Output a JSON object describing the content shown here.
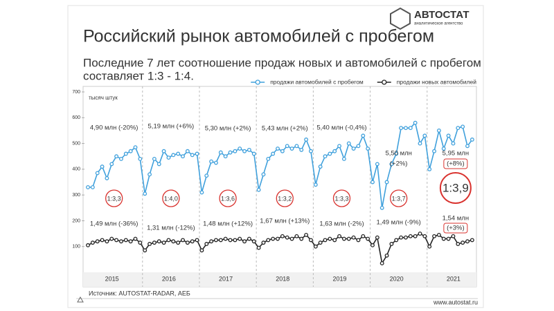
{
  "brand": {
    "name": "АВТОСТАТ",
    "tagline": "аналитическое агентство"
  },
  "footer": {
    "source": "Источник: AUTOSTAT-RADAR, АЕБ",
    "site": "www.autostat.ru"
  },
  "chart_data": {
    "type": "line",
    "title": "Российский рынок автомобилей с пробегом",
    "subtitle": [
      "Последние 7 лет соотношение продаж новых и автомобилей с пробегом",
      "составляет 1:3 - 1:4."
    ],
    "y_label": "тысяч штук",
    "ylim": [
      0,
      700
    ],
    "yticks": [
      100,
      200,
      300,
      400,
      500,
      600,
      700
    ],
    "grid": false,
    "legend": "top-right",
    "categories": [
      null,
      null,
      null,
      null,
      null,
      null,
      "2015",
      null,
      null,
      null,
      null,
      null,
      null,
      null,
      null,
      null,
      null,
      null,
      "2016",
      null,
      null,
      null,
      null,
      null,
      null,
      null,
      null,
      null,
      null,
      null,
      "2017",
      null,
      null,
      null,
      null,
      null,
      null,
      null,
      null,
      null,
      null,
      null,
      "2018",
      null,
      null,
      null,
      null,
      null,
      null,
      null,
      null,
      null,
      null,
      null,
      "2019",
      null,
      null,
      null,
      null,
      null,
      null,
      null,
      null,
      null,
      null,
      null,
      "2020",
      null,
      null,
      null,
      null,
      null,
      null,
      null,
      null,
      null,
      null,
      null,
      "2021",
      null,
      null,
      null
    ],
    "series": [
      {
        "name": "продажи автомобилей с пробегом",
        "color": "#3fa0dc",
        "values": [
          330,
          330,
          385,
          410,
          365,
          420,
          450,
          440,
          460,
          470,
          485,
          440,
          305,
          380,
          440,
          420,
          470,
          445,
          455,
          460,
          450,
          470,
          455,
          460,
          310,
          375,
          430,
          425,
          465,
          450,
          465,
          470,
          480,
          470,
          475,
          460,
          320,
          380,
          440,
          460,
          480,
          470,
          490,
          480,
          490,
          475,
          515,
          470,
          340,
          410,
          450,
          460,
          470,
          490,
          440,
          500,
          480,
          490,
          530,
          480,
          350,
          420,
          250,
          350,
          420,
          460,
          560,
          560,
          560,
          580,
          500,
          530,
          400,
          470,
          550,
          480,
          530,
          500,
          560,
          565,
          490,
          515
        ]
      },
      {
        "name": "продажи новых автомобилей",
        "color": "#222222",
        "values": [
          105,
          115,
          120,
          125,
          120,
          130,
          125,
          120,
          125,
          120,
          130,
          115,
          85,
          110,
          115,
          120,
          115,
          125,
          120,
          115,
          125,
          115,
          120,
          125,
          85,
          110,
          120,
          125,
          125,
          130,
          125,
          125,
          130,
          120,
          130,
          120,
          95,
          115,
          125,
          130,
          130,
          140,
          135,
          130,
          140,
          130,
          145,
          125,
          100,
          115,
          125,
          130,
          125,
          140,
          130,
          130,
          135,
          125,
          140,
          130,
          105,
          135,
          35,
          65,
          110,
          125,
          135,
          135,
          140,
          140,
          150,
          140,
          100,
          140,
          145,
          130,
          130,
          140,
          110,
          115,
          120,
          125
        ]
      }
    ],
    "annotations": [
      {
        "used": [
          "4,90 млн (-20%)"
        ],
        "new": [
          "1,49 млн (-36%)"
        ],
        "ratio": "1:3,3"
      },
      {
        "used": [
          "5,19 млн (+6%)"
        ],
        "new": [
          "1,31 млн (-12%)"
        ],
        "ratio": "1:4,0"
      },
      {
        "used": [
          "5,30 млн (+2%)"
        ],
        "new": [
          "1,48 млн (+12%)"
        ],
        "ratio": "1:3,6"
      },
      {
        "used": [
          "5,43 млн (+2%)"
        ],
        "new": [
          "1,67 млн (+13%)"
        ],
        "ratio": "1:3,2"
      },
      {
        "used": [
          "5,40 млн (-0,4%)"
        ],
        "new": [
          "1,63 млн (-2%)"
        ],
        "ratio": "1:3,3"
      },
      {
        "used": [
          "5,50 млн",
          "(+2%)"
        ],
        "new": [
          "1,49 млн (-9%)"
        ],
        "ratio": "1:3,7"
      },
      {
        "used": [
          "5,95 млн",
          "(+8%)"
        ],
        "new": [
          "1,54 млн",
          "(+3%)"
        ],
        "ratio": "1:3,9"
      }
    ]
  }
}
